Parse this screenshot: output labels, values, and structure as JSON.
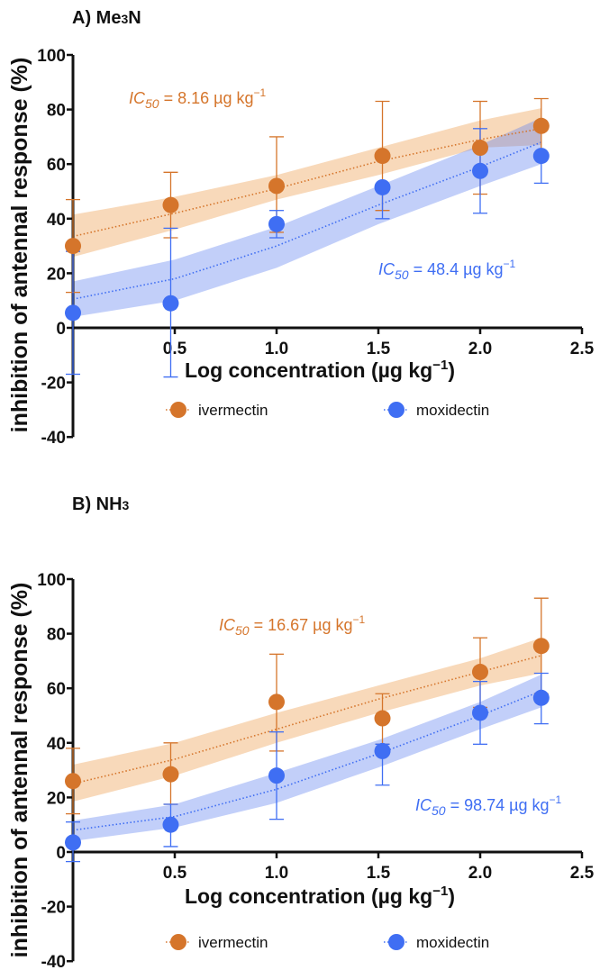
{
  "colors": {
    "ivermectin": "#D5752B",
    "moxidectin": "#3F6EF3",
    "ivermectin_band": "rgba(242,180,118,0.5)",
    "moxidectin_band": "rgba(95,128,240,0.38)"
  },
  "chart_data": [
    {
      "type": "scatter",
      "title": "A) Me",
      "title_sub": "3",
      "title_end": "N",
      "xlabel": {
        "text": "Log concentration (µg kg",
        "sup": "−1",
        "end": ")"
      },
      "ylabel": "inhibition of antennal response (%)",
      "xlim": [
        0,
        2.5
      ],
      "ylim": [
        -40,
        100
      ],
      "xticks": [
        {
          "v": 0.5,
          "label": "0.5"
        },
        {
          "v": 1.0,
          "label": "1.0"
        },
        {
          "v": 1.5,
          "label": "1.5"
        },
        {
          "v": 2.0,
          "label": "2.0"
        },
        {
          "v": 2.5,
          "label": "2.5"
        }
      ],
      "yticks": [
        {
          "v": 100,
          "label": "100"
        },
        {
          "v": 80,
          "label": "80"
        },
        {
          "v": 60,
          "label": "60"
        },
        {
          "v": 40,
          "label": "40"
        },
        {
          "v": 20,
          "label": "20"
        },
        {
          "v": 0,
          "label": "0"
        },
        {
          "v": -20,
          "label": "-20"
        },
        {
          "v": -40,
          "label": "-40"
        }
      ],
      "legend": [
        "ivermectin",
        "moxidectin"
      ],
      "series": [
        {
          "name": "ivermectin",
          "x": [
            0,
            0.48,
            1.0,
            1.52,
            2.0,
            2.3
          ],
          "y": [
            30,
            45,
            52,
            63,
            66,
            74
          ],
          "err_low": [
            13,
            33,
            35,
            43,
            49,
            64
          ],
          "err_high": [
            47,
            57,
            70,
            83,
            83,
            84
          ],
          "fit_x": [
            0,
            0.5,
            1.0,
            1.5,
            2.0,
            2.3
          ],
          "fit_y": [
            33.5,
            42,
            51,
            61,
            69,
            73
          ],
          "band_low": [
            26,
            36,
            47,
            56,
            66,
            67
          ],
          "band_high": [
            41.5,
            48,
            56,
            66,
            76,
            80.5
          ],
          "ic50": {
            "prefix": "IC",
            "sub": "50",
            "text": " = 8.16 µg kg",
            "sup": "−1"
          }
        },
        {
          "name": "moxidectin",
          "x": [
            0,
            0.48,
            1.0,
            1.52,
            2.0,
            2.3
          ],
          "y": [
            5.5,
            9,
            38,
            51.5,
            57.5,
            63
          ],
          "err_low": [
            -17,
            -18,
            33,
            40,
            42,
            53
          ],
          "err_high": [
            28,
            36.5,
            43,
            52,
            73,
            64
          ],
          "fit_x": [
            0,
            0.5,
            1.0,
            1.5,
            2.0,
            2.3
          ],
          "fit_y": [
            10.5,
            18,
            30,
            45,
            59,
            68
          ],
          "band_low": [
            4,
            10,
            22,
            38,
            52,
            60
          ],
          "band_high": [
            17,
            25,
            37,
            52,
            67,
            77
          ],
          "ic50": {
            "prefix": "IC",
            "sub": "50",
            "text": " = 48.4 µg kg",
            "sup": "−1"
          }
        }
      ]
    },
    {
      "type": "scatter",
      "title": "B) NH",
      "title_sub": "3",
      "title_end": "",
      "xlabel": {
        "text": "Log concentration (µg kg",
        "sup": "−1",
        "end": ")"
      },
      "ylabel": "inhibition of antennal response (%)",
      "xlim": [
        0,
        2.5
      ],
      "ylim": [
        -40,
        100
      ],
      "xticks": [
        {
          "v": 0.5,
          "label": "0.5"
        },
        {
          "v": 1.0,
          "label": "1.0"
        },
        {
          "v": 1.5,
          "label": "1.5"
        },
        {
          "v": 2.0,
          "label": "2.0"
        },
        {
          "v": 2.5,
          "label": "2.5"
        }
      ],
      "yticks": [
        {
          "v": 100,
          "label": "100"
        },
        {
          "v": 80,
          "label": "80"
        },
        {
          "v": 60,
          "label": "60"
        },
        {
          "v": 40,
          "label": "40"
        },
        {
          "v": 20,
          "label": "20"
        },
        {
          "v": 0,
          "label": "0"
        },
        {
          "v": -20,
          "label": "-20"
        },
        {
          "v": -40,
          "label": "-40"
        }
      ],
      "legend": [
        "ivermectin",
        "moxidectin"
      ],
      "series": [
        {
          "name": "ivermectin",
          "x": [
            0,
            0.48,
            1.0,
            1.52,
            2.0,
            2.3
          ],
          "y": [
            26,
            28.5,
            55,
            49,
            66,
            75.5
          ],
          "err_low": [
            14,
            17.5,
            37,
            39.5,
            53,
            58
          ],
          "err_high": [
            38,
            40,
            72.5,
            58,
            78.5,
            93
          ],
          "fit_x": [
            0,
            0.5,
            1.0,
            1.5,
            2.0,
            2.3
          ],
          "fit_y": [
            25,
            34,
            45,
            56,
            66,
            72
          ],
          "band_low": [
            18.5,
            28,
            40,
            51,
            61,
            65.5
          ],
          "band_high": [
            32,
            40,
            51,
            61,
            71,
            78.5
          ],
          "ic50": {
            "prefix": "IC",
            "sub": "50",
            "text": " = 16.67 µg kg",
            "sup": "−1"
          }
        },
        {
          "name": "moxidectin",
          "x": [
            0,
            0.48,
            1.0,
            1.52,
            2.0,
            2.3
          ],
          "y": [
            3.5,
            10,
            28,
            37,
            51,
            56.5
          ],
          "err_low": [
            -3.5,
            2,
            12,
            24.5,
            39.5,
            47
          ],
          "err_high": [
            11,
            17.5,
            44,
            39.5,
            62.5,
            65.5
          ],
          "fit_x": [
            0,
            0.5,
            1.0,
            1.5,
            2.0,
            2.3
          ],
          "fit_y": [
            8,
            13,
            23,
            36,
            50,
            59
          ],
          "band_low": [
            4,
            9,
            18,
            31,
            45,
            53
          ],
          "band_high": [
            11.5,
            17.5,
            29,
            41,
            55,
            65
          ],
          "ic50": {
            "prefix": "IC",
            "sub": "50",
            "text": " = 98.74 µg kg",
            "sup": "−1"
          }
        }
      ]
    }
  ]
}
